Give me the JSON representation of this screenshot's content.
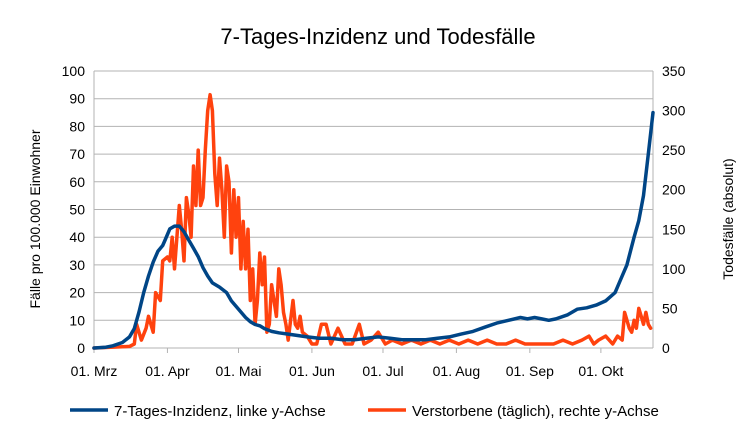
{
  "chart_data": {
    "type": "line",
    "title": "7-Tages-Inzidenz und Todesfälle",
    "xlabel": "",
    "ylabel_left": "Fälle pro 100.000 Einwohner",
    "ylabel_right": "Todesfälle (absolut)",
    "x_range_days": [
      0,
      236
    ],
    "ylim_left": [
      0,
      100
    ],
    "ylim_right": [
      0,
      350
    ],
    "yticks_left": [
      0,
      10,
      20,
      30,
      40,
      50,
      60,
      70,
      80,
      90,
      100
    ],
    "yticks_right": [
      0,
      50,
      100,
      150,
      200,
      250,
      300,
      350
    ],
    "xticks": [
      {
        "day": 0,
        "label": "01. Mrz"
      },
      {
        "day": 31,
        "label": "01. Apr"
      },
      {
        "day": 61,
        "label": "01. Mai"
      },
      {
        "day": 92,
        "label": "01. Jun"
      },
      {
        "day": 122,
        "label": "01. Jul"
      },
      {
        "day": 153,
        "label": "01. Aug"
      },
      {
        "day": 184,
        "label": "01. Sep"
      },
      {
        "day": 214,
        "label": "01. Okt"
      }
    ],
    "gridlines": true,
    "legend_position": "bottom",
    "series": [
      {
        "name": "7-Tages-Inzidenz, linke y-Achse",
        "axis": "left",
        "color": "#004586",
        "points": [
          [
            0,
            0
          ],
          [
            5,
            0.3
          ],
          [
            8,
            0.8
          ],
          [
            12,
            2
          ],
          [
            15,
            4
          ],
          [
            17,
            7
          ],
          [
            19,
            13
          ],
          [
            21,
            20
          ],
          [
            23,
            26
          ],
          [
            25,
            31
          ],
          [
            27,
            35
          ],
          [
            29,
            37
          ],
          [
            30,
            39
          ],
          [
            32,
            43
          ],
          [
            34,
            44
          ],
          [
            36,
            44
          ],
          [
            38,
            42
          ],
          [
            40,
            39
          ],
          [
            42,
            36
          ],
          [
            44,
            33
          ],
          [
            46,
            29
          ],
          [
            48,
            26
          ],
          [
            50,
            23.5
          ],
          [
            53,
            22
          ],
          [
            56,
            20
          ],
          [
            58,
            17
          ],
          [
            60,
            15
          ],
          [
            62,
            13
          ],
          [
            64,
            11
          ],
          [
            66,
            9.5
          ],
          [
            68,
            8.5
          ],
          [
            70,
            8
          ],
          [
            72,
            7
          ],
          [
            75,
            6
          ],
          [
            78,
            5.5
          ],
          [
            82,
            5
          ],
          [
            86,
            4.5
          ],
          [
            90,
            4
          ],
          [
            95,
            3.5
          ],
          [
            100,
            3.5
          ],
          [
            105,
            3
          ],
          [
            110,
            3
          ],
          [
            115,
            3.5
          ],
          [
            120,
            4
          ],
          [
            125,
            3.5
          ],
          [
            130,
            3
          ],
          [
            135,
            3
          ],
          [
            140,
            3
          ],
          [
            145,
            3.5
          ],
          [
            150,
            4
          ],
          [
            155,
            5
          ],
          [
            160,
            6
          ],
          [
            165,
            7.5
          ],
          [
            170,
            9
          ],
          [
            175,
            10
          ],
          [
            180,
            11
          ],
          [
            183,
            10.5
          ],
          [
            186,
            11
          ],
          [
            189,
            10.5
          ],
          [
            192,
            10
          ],
          [
            195,
            10.5
          ],
          [
            200,
            12
          ],
          [
            204,
            14
          ],
          [
            208,
            14.5
          ],
          [
            212,
            15.5
          ],
          [
            216,
            17
          ],
          [
            220,
            20
          ],
          [
            222,
            24
          ],
          [
            225,
            30
          ],
          [
            228,
            40
          ],
          [
            230,
            46
          ],
          [
            232,
            55
          ],
          [
            234,
            70
          ],
          [
            236,
            85
          ]
        ]
      },
      {
        "name": "Verstorbene (täglich), rechte y-Achse",
        "axis": "right",
        "color": "#ff420e",
        "points": [
          [
            0,
            0
          ],
          [
            15,
            2
          ],
          [
            17,
            5
          ],
          [
            18,
            30
          ],
          [
            20,
            10
          ],
          [
            22,
            25
          ],
          [
            23,
            40
          ],
          [
            25,
            20
          ],
          [
            26,
            70
          ],
          [
            28,
            60
          ],
          [
            29,
            110
          ],
          [
            31,
            115
          ],
          [
            32,
            110
          ],
          [
            33,
            140
          ],
          [
            34,
            100
          ],
          [
            35,
            140
          ],
          [
            36,
            180
          ],
          [
            37,
            150
          ],
          [
            38,
            110
          ],
          [
            39,
            190
          ],
          [
            40,
            170
          ],
          [
            41,
            140
          ],
          [
            42,
            230
          ],
          [
            43,
            180
          ],
          [
            44,
            250
          ],
          [
            45,
            180
          ],
          [
            46,
            190
          ],
          [
            47,
            250
          ],
          [
            48,
            300
          ],
          [
            49,
            320
          ],
          [
            50,
            300
          ],
          [
            51,
            220
          ],
          [
            52,
            180
          ],
          [
            53,
            240
          ],
          [
            54,
            200
          ],
          [
            55,
            140
          ],
          [
            56,
            230
          ],
          [
            57,
            210
          ],
          [
            58,
            120
          ],
          [
            59,
            200
          ],
          [
            60,
            140
          ],
          [
            61,
            190
          ],
          [
            62,
            100
          ],
          [
            63,
            160
          ],
          [
            64,
            100
          ],
          [
            65,
            150
          ],
          [
            66,
            60
          ],
          [
            67,
            100
          ],
          [
            68,
            30
          ],
          [
            69,
            60
          ],
          [
            70,
            120
          ],
          [
            71,
            80
          ],
          [
            72,
            115
          ],
          [
            73,
            20
          ],
          [
            74,
            30
          ],
          [
            75,
            80
          ],
          [
            76,
            60
          ],
          [
            77,
            40
          ],
          [
            78,
            100
          ],
          [
            79,
            80
          ],
          [
            80,
            45
          ],
          [
            81,
            30
          ],
          [
            82,
            10
          ],
          [
            83,
            35
          ],
          [
            84,
            60
          ],
          [
            85,
            30
          ],
          [
            86,
            25
          ],
          [
            87,
            40
          ],
          [
            88,
            20
          ],
          [
            90,
            15
          ],
          [
            92,
            5
          ],
          [
            94,
            5
          ],
          [
            96,
            30
          ],
          [
            98,
            30
          ],
          [
            100,
            5
          ],
          [
            103,
            25
          ],
          [
            106,
            5
          ],
          [
            109,
            5
          ],
          [
            112,
            30
          ],
          [
            114,
            5
          ],
          [
            117,
            10
          ],
          [
            120,
            20
          ],
          [
            123,
            5
          ],
          [
            126,
            10
          ],
          [
            130,
            5
          ],
          [
            134,
            10
          ],
          [
            138,
            5
          ],
          [
            142,
            10
          ],
          [
            146,
            5
          ],
          [
            150,
            10
          ],
          [
            154,
            5
          ],
          [
            158,
            10
          ],
          [
            162,
            5
          ],
          [
            166,
            10
          ],
          [
            170,
            5
          ],
          [
            174,
            5
          ],
          [
            178,
            10
          ],
          [
            182,
            5
          ],
          [
            186,
            5
          ],
          [
            190,
            5
          ],
          [
            194,
            5
          ],
          [
            198,
            10
          ],
          [
            202,
            5
          ],
          [
            206,
            10
          ],
          [
            209,
            15
          ],
          [
            211,
            5
          ],
          [
            213,
            10
          ],
          [
            216,
            15
          ],
          [
            219,
            5
          ],
          [
            221,
            15
          ],
          [
            223,
            10
          ],
          [
            224,
            45
          ],
          [
            226,
            25
          ],
          [
            227,
            20
          ],
          [
            228,
            35
          ],
          [
            229,
            25
          ],
          [
            230,
            50
          ],
          [
            231,
            40
          ],
          [
            232,
            30
          ],
          [
            233,
            45
          ],
          [
            234,
            30
          ],
          [
            235,
            25
          ]
        ]
      }
    ]
  }
}
